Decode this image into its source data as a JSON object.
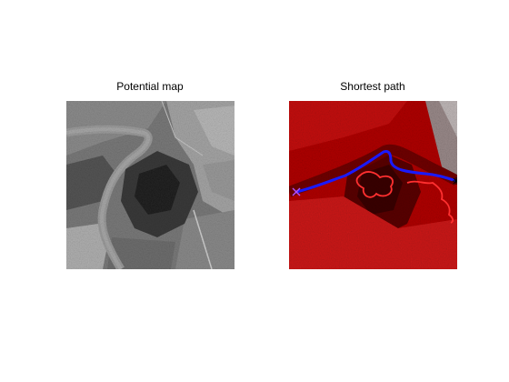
{
  "figure": {
    "left_panel": {
      "title": "Potential map",
      "image": "grayscale-aerial-river-image"
    },
    "right_panel": {
      "title": "Shortest path",
      "image": "red-tinted-aerial-river-image",
      "path_color": "#1a1aff",
      "front_color": "#ff3030",
      "start_marker": "cross-marker",
      "end_marker": "star-marker",
      "start_marker_color": "#b050ff",
      "end_marker_color": "#000000"
    }
  }
}
